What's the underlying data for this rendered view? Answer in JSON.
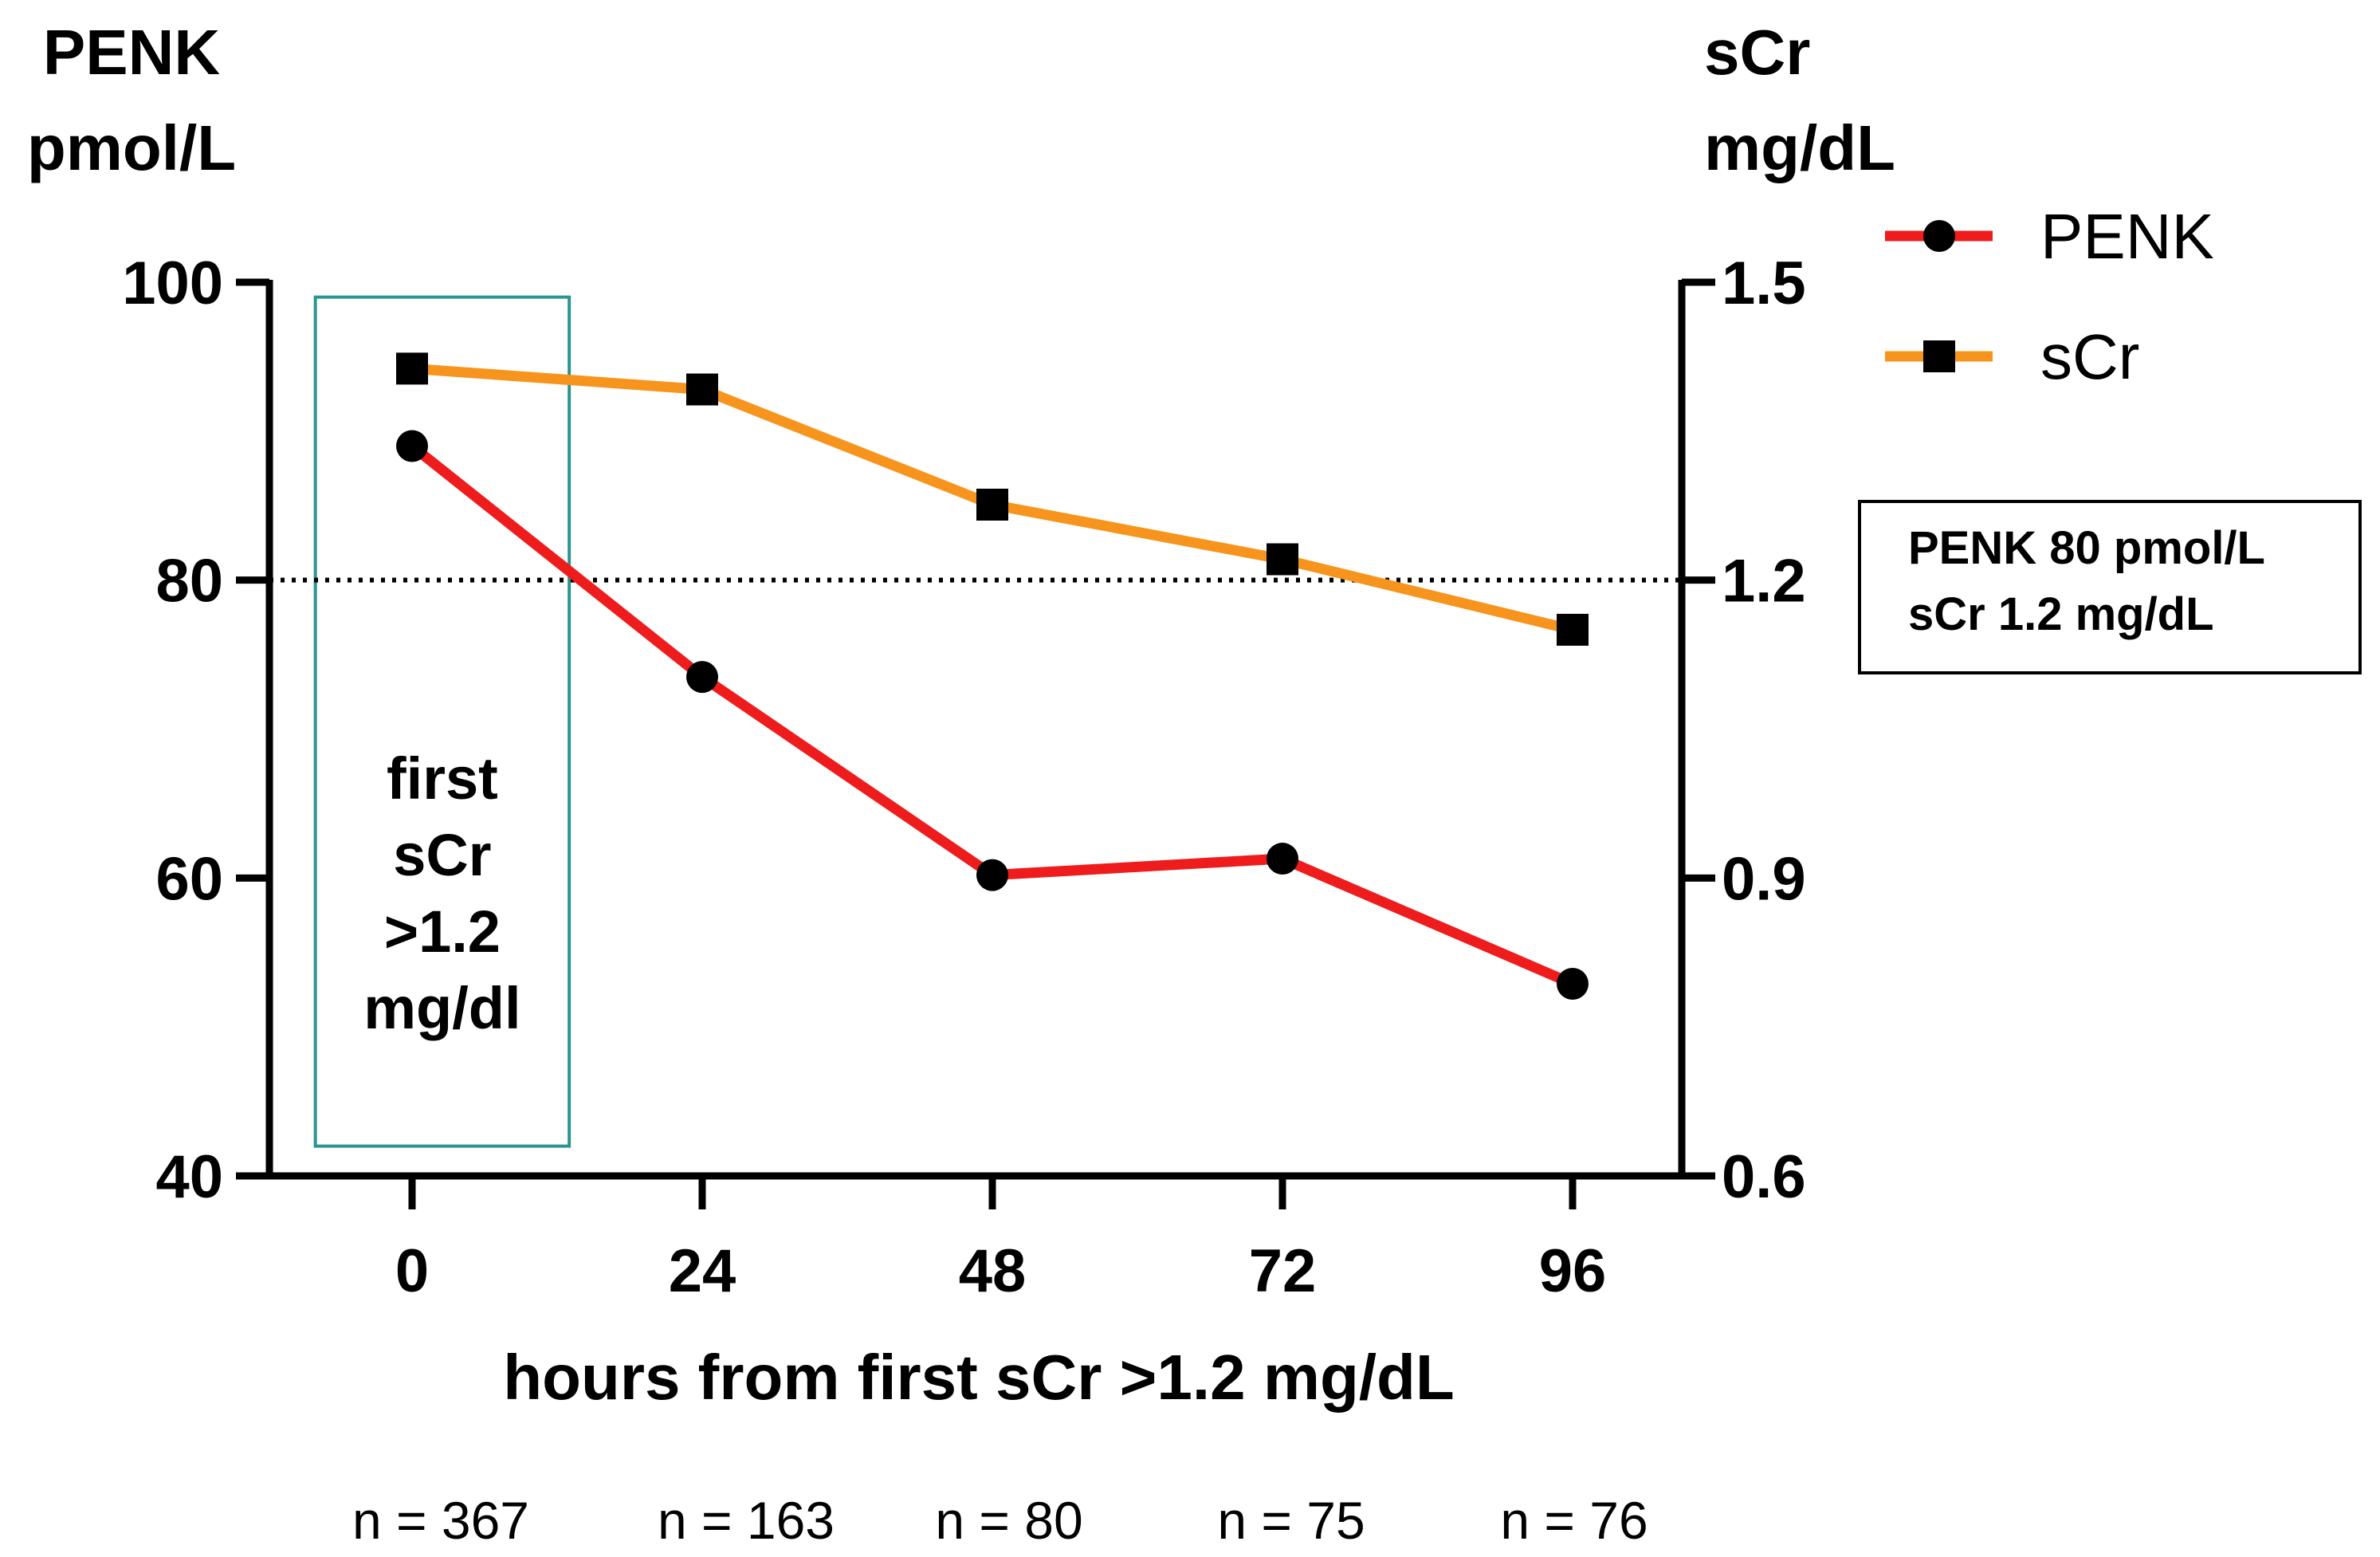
{
  "chart_data": {
    "type": "line",
    "xlabel": "hours from first sCr >1.2 mg/dL",
    "x": [
      0,
      24,
      48,
      72,
      96
    ],
    "x_tick_labels": [
      "0",
      "24",
      "48",
      "72",
      "96"
    ],
    "left_axis": {
      "label_line1": "PENK",
      "label_line2": "pmol/L",
      "range": [
        40,
        100
      ],
      "ticks": [
        40,
        60,
        80,
        100
      ],
      "tick_labels": [
        "40",
        "60",
        "80",
        "100"
      ]
    },
    "right_axis": {
      "label_line1": "sCr",
      "label_line2": "mg/dL",
      "range": [
        0.6,
        1.5
      ],
      "ticks": [
        0.6,
        0.9,
        1.2,
        1.5
      ],
      "tick_labels": [
        "0.6",
        "0.9",
        "1.2",
        "1.5"
      ]
    },
    "series": [
      {
        "name": "PENK",
        "axis": "left",
        "marker": "circle",
        "color": "#ee1c1c",
        "values": [
          89,
          73.5,
          60.2,
          61.3,
          52.9
        ]
      },
      {
        "name": "sCr",
        "axis": "right",
        "marker": "square",
        "color": "#f7941d",
        "values": [
          1.413,
          1.392,
          1.276,
          1.221,
          1.15
        ]
      }
    ],
    "threshold": {
      "left_value": 80,
      "right_value": 1.2,
      "style": "dotted"
    },
    "threshold_box": {
      "line1": "PENK 80 pmol/L",
      "line2": "sCr 1.2 mg/dL"
    },
    "annotation_box": {
      "x_range": [
        -8,
        13
      ],
      "y_range": [
        42,
        99
      ],
      "color": "#2a9490",
      "lines": [
        "first",
        "sCr",
        ">1.2",
        "mg/dl"
      ]
    },
    "sample_sizes": [
      "n = 367",
      "n = 163",
      "n = 80",
      "n = 75",
      "n = 76"
    ]
  }
}
